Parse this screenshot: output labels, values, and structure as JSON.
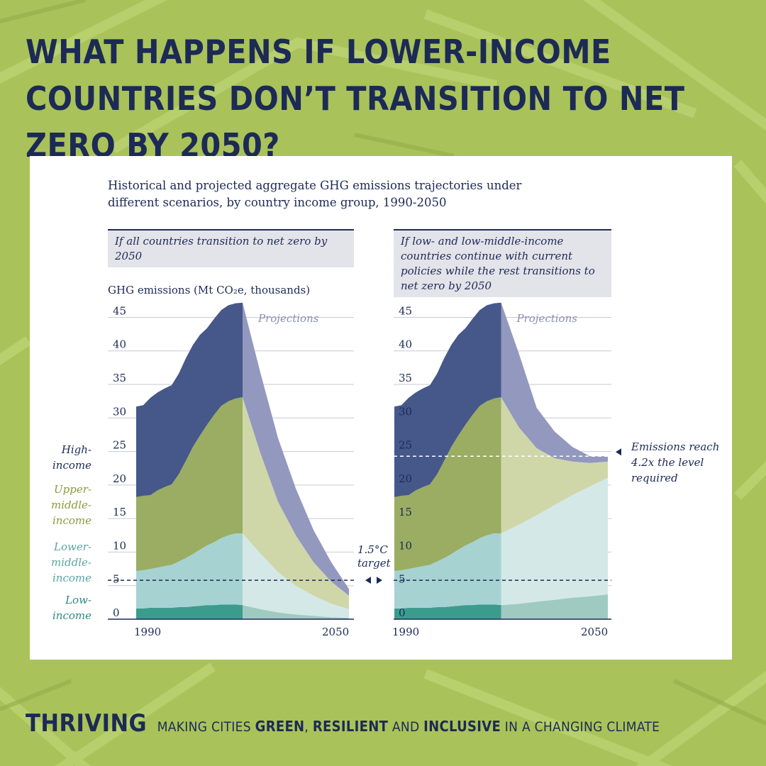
{
  "header": {
    "title": "What happens if lower-income countries don’t transition to net zero by 2050?"
  },
  "chart_title": "Historical and projected aggregate GHG emissions trajectories under different scenarios, by country income group, 1990-2050",
  "y_axis_label": "GHG emissions (Mt CO₂e, thousands)",
  "legend": {
    "high_income": "High-\nincome",
    "upper_middle_income": "Upper-\nmiddle-\nincome",
    "lower_middle_income": "Lower-\nmiddle-\nincome",
    "low_income": "Low-\nincome"
  },
  "annotations": {
    "target": "1.5°C\ntarget",
    "emissions_reach": "Emissions reach\n4.2x the level\nrequired",
    "projections": "Projections"
  },
  "colors": {
    "background": "#a9c25a",
    "navy": "#1c2a55",
    "high_income": "#46578a",
    "upper_middle_income": "#9aad63",
    "lower_middle_income": "#a6d2d2",
    "low_income": "#3b9c8e",
    "high_income_projection": "#9398bf",
    "upper_middle_income_projection": "#cfd7a9",
    "lower_middle_income_projection": "#d4e8e7",
    "low_income_projection": "#9fcac2"
  },
  "footer": {
    "brand": "Thriving",
    "tag_1": "Making cities ",
    "tag_2": "green",
    "tag_3": ", ",
    "tag_4": "resilient",
    "tag_5": " and ",
    "tag_6": "inclusive",
    "tag_7": " in a changing climate"
  },
  "chart_data": [
    {
      "type": "area",
      "stacked": true,
      "title": "If all countries transition to net zero by 2050",
      "ylabel": "GHG emissions (Mt CO₂e, thousands)",
      "ylim": [
        0,
        46
      ],
      "yticks": [
        0,
        5,
        10,
        15,
        20,
        25,
        30,
        35,
        40,
        45
      ],
      "xlim": [
        1990,
        2050
      ],
      "xtick_labels": [
        "1990",
        "2050"
      ],
      "projection_start": 2020,
      "target_line": 5.8,
      "x": [
        1990,
        1992,
        1994,
        1996,
        1998,
        2000,
        2002,
        2004,
        2006,
        2008,
        2010,
        2012,
        2014,
        2016,
        2018,
        2020,
        2025,
        2030,
        2035,
        2040,
        2045,
        2050
      ],
      "series": [
        {
          "name": "Low-income",
          "values": [
            1.6,
            1.6,
            1.7,
            1.7,
            1.7,
            1.7,
            1.8,
            1.8,
            1.9,
            2.0,
            2.1,
            2.1,
            2.2,
            2.2,
            2.2,
            2.1,
            1.5,
            1.0,
            0.7,
            0.5,
            0.3,
            0.2
          ]
        },
        {
          "name": "Lower-middle-income",
          "values": [
            5.6,
            5.7,
            5.8,
            6.0,
            6.2,
            6.4,
            6.8,
            7.3,
            7.8,
            8.4,
            8.9,
            9.4,
            9.9,
            10.3,
            10.6,
            10.7,
            8.3,
            6.0,
            4.3,
            3.0,
            2.0,
            1.3
          ]
        },
        {
          "name": "Upper-middle-income",
          "values": [
            11.0,
            11.1,
            11.0,
            11.5,
            11.8,
            12.0,
            13.0,
            14.5,
            16.0,
            17.0,
            18.0,
            19.0,
            19.7,
            20.0,
            20.1,
            20.3,
            15.0,
            10.5,
            7.5,
            5.0,
            3.3,
            2.0
          ]
        },
        {
          "name": "High-income",
          "values": [
            13.5,
            13.5,
            14.5,
            14.6,
            14.7,
            14.8,
            15.0,
            15.3,
            15.2,
            15.0,
            14.4,
            14.3,
            14.3,
            14.3,
            14.2,
            14.1,
            12.0,
            9.5,
            7.0,
            4.8,
            2.9,
            1.0
          ]
        }
      ]
    },
    {
      "type": "area",
      "stacked": true,
      "title": "If low- and low-middle-income countries continue with current policies while the rest transitions to net zero by 2050",
      "ylabel": "GHG emissions (Mt CO₂e, thousands)",
      "ylim": [
        0,
        46
      ],
      "yticks": [
        0,
        5,
        10,
        15,
        20,
        25,
        30,
        35,
        40,
        45
      ],
      "xlim": [
        1990,
        2050
      ],
      "xtick_labels": [
        "1990",
        "2050"
      ],
      "projection_start": 2020,
      "target_line": 5.8,
      "emissions_reach_level": 24.3,
      "x": [
        1990,
        1992,
        1994,
        1996,
        1998,
        2000,
        2002,
        2004,
        2006,
        2008,
        2010,
        2012,
        2014,
        2016,
        2018,
        2020,
        2025,
        2030,
        2035,
        2040,
        2045,
        2050
      ],
      "series": [
        {
          "name": "Low-income",
          "values": [
            1.6,
            1.6,
            1.7,
            1.7,
            1.7,
            1.7,
            1.8,
            1.8,
            1.9,
            2.0,
            2.1,
            2.1,
            2.2,
            2.2,
            2.2,
            2.1,
            2.3,
            2.6,
            2.9,
            3.2,
            3.4,
            3.7
          ]
        },
        {
          "name": "Lower-middle-income",
          "values": [
            5.6,
            5.7,
            5.8,
            6.0,
            6.2,
            6.4,
            6.8,
            7.3,
            7.8,
            8.4,
            8.9,
            9.4,
            9.9,
            10.3,
            10.6,
            10.7,
            11.8,
            12.9,
            14.1,
            15.3,
            16.4,
            17.4
          ]
        },
        {
          "name": "Upper-middle-income",
          "values": [
            11.0,
            11.1,
            11.0,
            11.5,
            11.8,
            12.0,
            13.0,
            14.5,
            16.0,
            17.0,
            18.0,
            19.0,
            19.7,
            20.0,
            20.1,
            20.3,
            14.5,
            10.0,
            7.0,
            5.0,
            3.5,
            2.4
          ]
        },
        {
          "name": "High-income",
          "values": [
            13.5,
            13.5,
            14.5,
            14.6,
            14.7,
            14.8,
            15.0,
            15.3,
            15.2,
            15.0,
            14.4,
            14.3,
            14.3,
            14.3,
            14.2,
            14.1,
            11.0,
            6.0,
            4.0,
            2.2,
            1.0,
            0.8
          ]
        }
      ]
    }
  ]
}
